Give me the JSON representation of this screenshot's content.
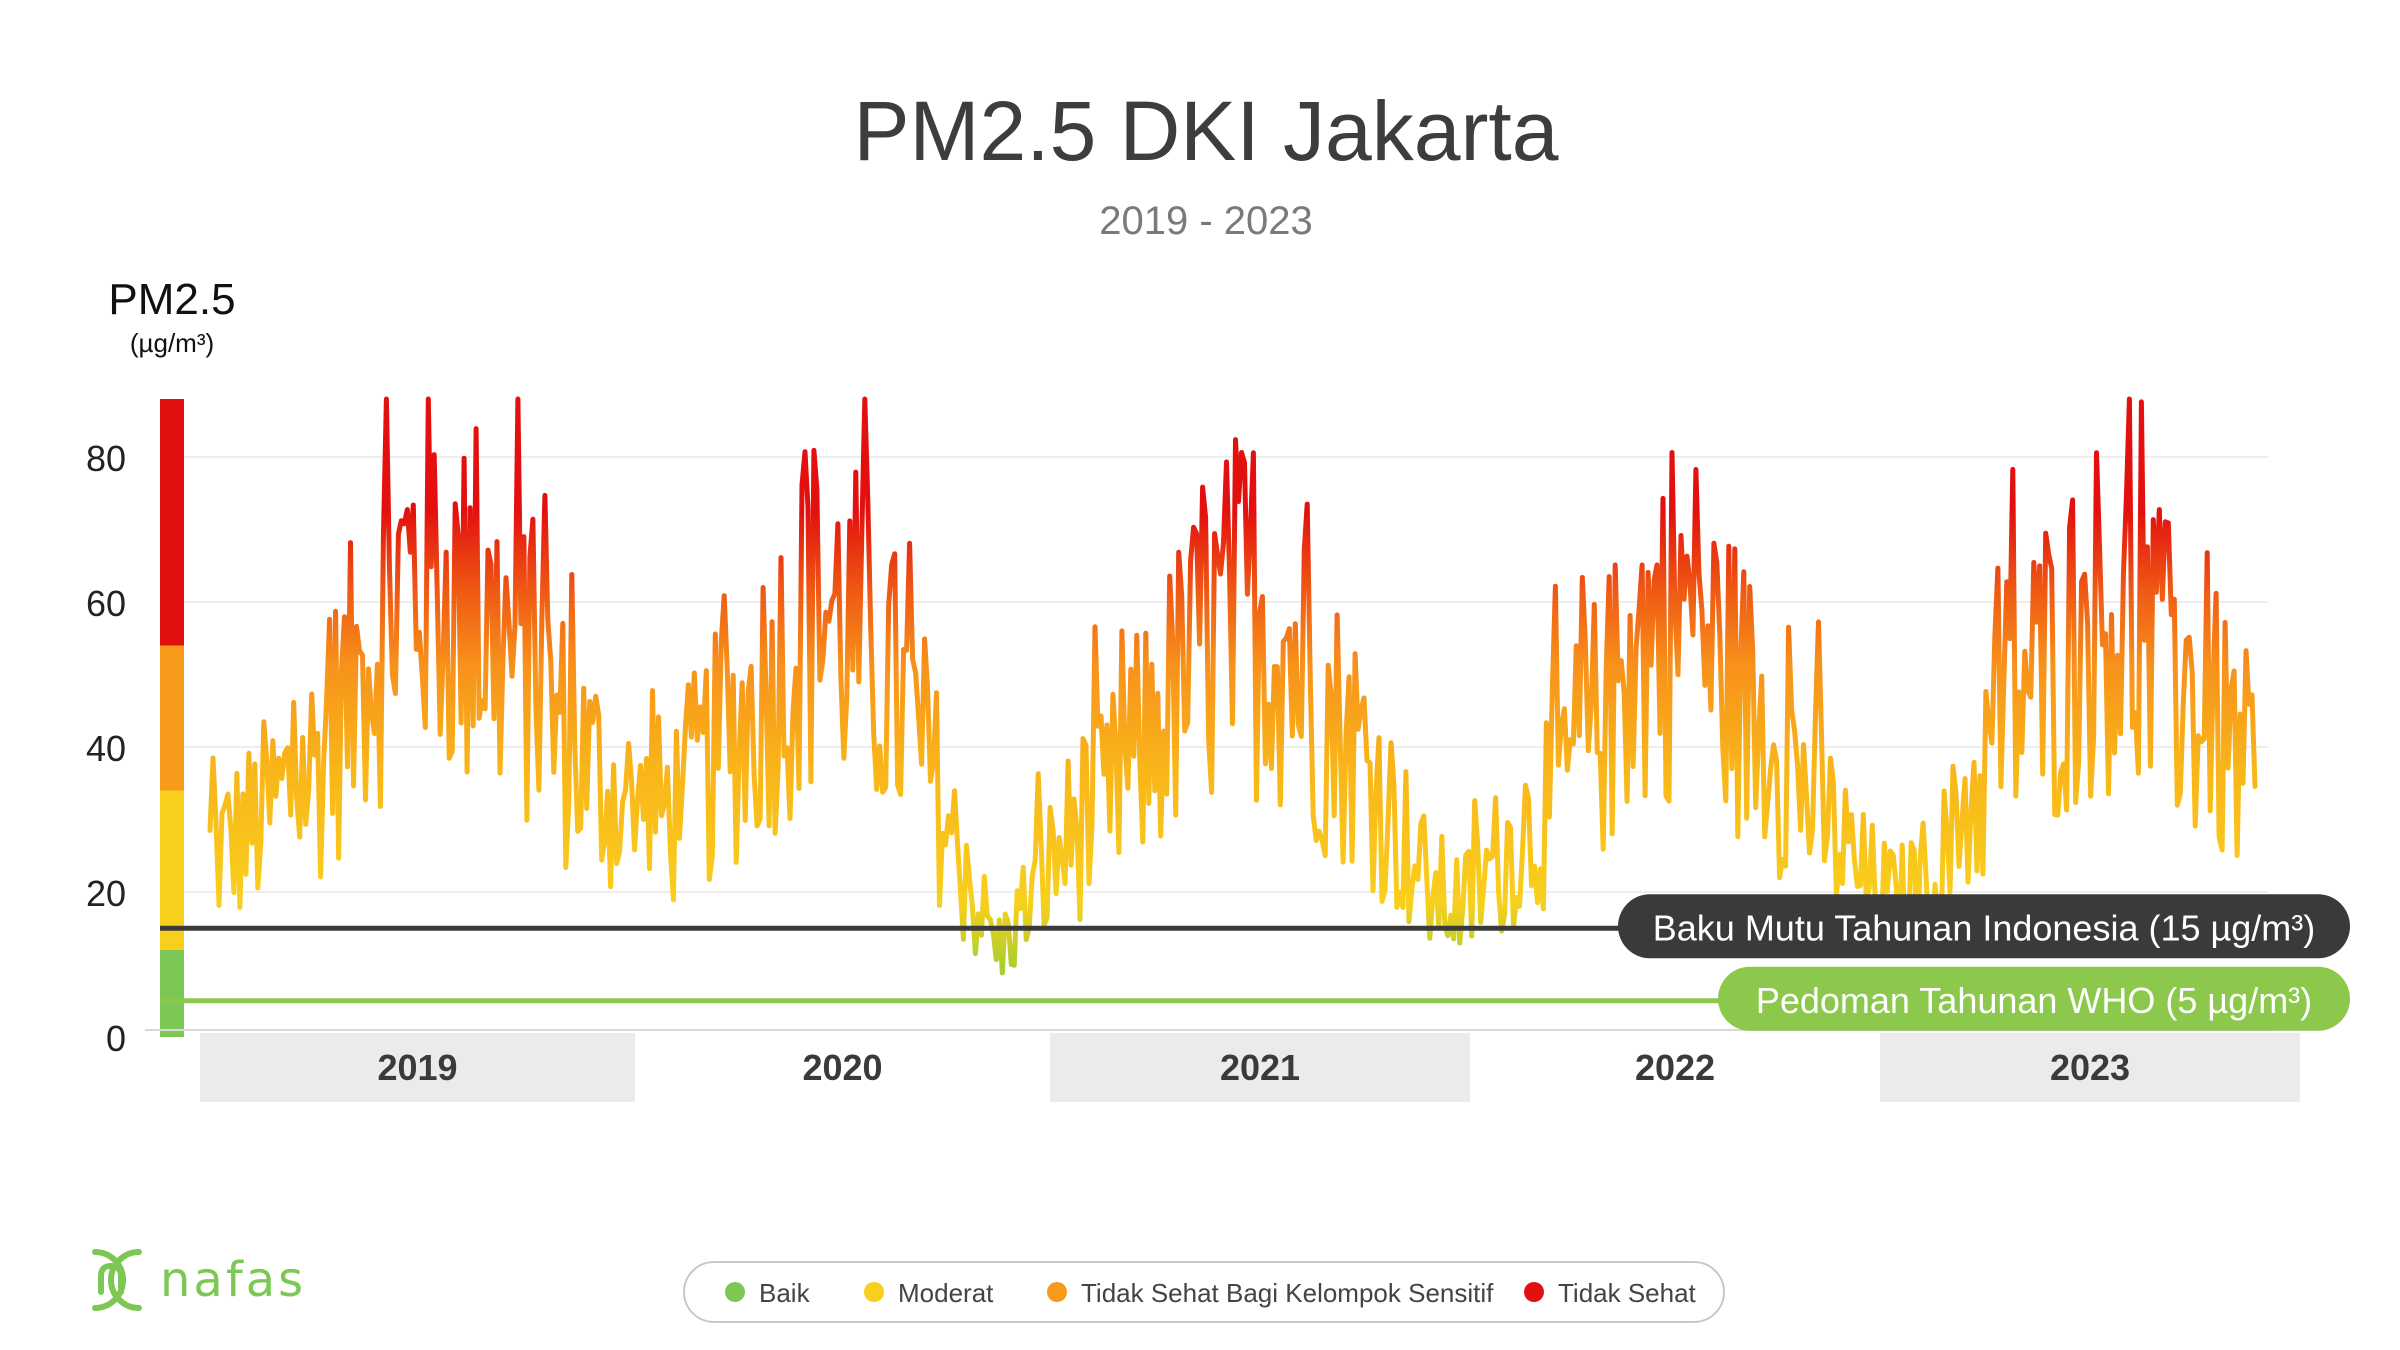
{
  "chart_data": {
    "type": "line",
    "title": "PM2.5 DKI Jakarta",
    "subtitle": "2019 - 2023",
    "ylabel": "PM2.5",
    "yunit": "(µg/m³)",
    "ylim": [
      0,
      90
    ],
    "yticks": [
      0,
      20,
      40,
      60,
      80
    ],
    "grid": true,
    "x_categories": [
      "2019",
      "2020",
      "2021",
      "2022",
      "2023"
    ],
    "category_bands": [
      {
        "name": "Baik",
        "range": [
          0,
          12
        ],
        "color": "#7dc855"
      },
      {
        "name": "Moderat",
        "range": [
          12,
          34
        ],
        "color": "#f9cf1d"
      },
      {
        "name": "Tidak Sehat Bagi Kelompok Sensitif",
        "range": [
          34,
          54
        ],
        "color": "#f79a1c"
      },
      {
        "name": "Tidak Sehat",
        "range": [
          54,
          88
        ],
        "color": "#e2110f"
      }
    ],
    "reference_lines": [
      {
        "label": "Baku Mutu Tahunan Indonesia (15 µg/m³)",
        "value": 15,
        "color": "#3a3a3a"
      },
      {
        "label": "Pedoman Tahunan WHO (5 µg/m³)",
        "value": 5,
        "color": "#8cc84b"
      }
    ],
    "series": [
      {
        "x": [
          "2019-01",
          "2019-02",
          "2019-03",
          "2019-04",
          "2019-05",
          "2019-06",
          "2019-07",
          "2019-08",
          "2019-09",
          "2019-10",
          "2019-11",
          "2019-12",
          "2020-01",
          "2020-02",
          "2020-03",
          "2020-04",
          "2020-05",
          "2020-06",
          "2020-07",
          "2020-08",
          "2020-09",
          "2020-10",
          "2020-11",
          "2020-12",
          "2021-01",
          "2021-02",
          "2021-03",
          "2021-04",
          "2021-05",
          "2021-06",
          "2021-07",
          "2021-08",
          "2021-09",
          "2021-10",
          "2021-11",
          "2021-12",
          "2022-01",
          "2022-02",
          "2022-03",
          "2022-04",
          "2022-05",
          "2022-06",
          "2022-07",
          "2022-08",
          "2022-09",
          "2022-10",
          "2022-11",
          "2022-12",
          "2023-01",
          "2023-02",
          "2023-03",
          "2023-04",
          "2023-05",
          "2023-06",
          "2023-07",
          "2023-08",
          "2023-09",
          "2023-10"
        ],
        "values": [
          25,
          28,
          33,
          38,
          48,
          60,
          65,
          58,
          55,
          50,
          40,
          35,
          30,
          32,
          38,
          44,
          52,
          60,
          55,
          48,
          38,
          22,
          12,
          20,
          28,
          32,
          40,
          48,
          55,
          60,
          55,
          45,
          40,
          30,
          20,
          18,
          25,
          30,
          38,
          45,
          55,
          60,
          52,
          45,
          38,
          30,
          22,
          18,
          22,
          30,
          45,
          50,
          55,
          60,
          52,
          48,
          42,
          35
        ]
      }
    ]
  },
  "legend": {
    "items": [
      {
        "label": "Baik",
        "color": "#7dc855"
      },
      {
        "label": "Moderat",
        "color": "#f9cf1d"
      },
      {
        "label": "Tidak Sehat Bagi Kelompok Sensitif",
        "color": "#f79a1c"
      },
      {
        "label": "Tidak Sehat",
        "color": "#e2110f"
      }
    ]
  },
  "logo": {
    "text": "nafas",
    "color": "#7dc855"
  }
}
